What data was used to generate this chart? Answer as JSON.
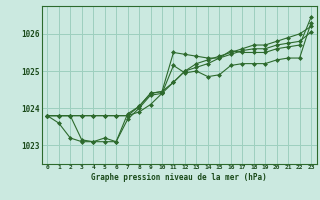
{
  "background_color": "#cbe9e0",
  "grid_color": "#9dcfbe",
  "line_color": "#2d6a2d",
  "xlabel": "Graphe pression niveau de la mer (hPa)",
  "ylim": [
    1022.5,
    1026.75
  ],
  "xlim": [
    -0.5,
    23.5
  ],
  "yticks": [
    1023,
    1024,
    1025,
    1026
  ],
  "xticks": [
    0,
    1,
    2,
    3,
    4,
    5,
    6,
    7,
    8,
    9,
    10,
    11,
    12,
    13,
    14,
    15,
    16,
    17,
    18,
    19,
    20,
    21,
    22,
    23
  ],
  "series": [
    [
      1023.8,
      1023.8,
      1023.8,
      1023.8,
      1023.8,
      1023.8,
      1023.8,
      1023.8,
      1023.9,
      1024.1,
      1024.4,
      1024.7,
      1025.0,
      1025.2,
      1025.3,
      1025.4,
      1025.5,
      1025.6,
      1025.7,
      1025.7,
      1025.8,
      1025.9,
      1026.0,
      1026.2
    ],
    [
      1023.8,
      1023.6,
      1023.2,
      1023.1,
      1023.1,
      1023.2,
      1023.1,
      1023.7,
      1024.0,
      1024.35,
      1024.4,
      1025.15,
      1024.95,
      1025.0,
      1024.85,
      1024.9,
      1025.15,
      1025.2,
      1025.2,
      1025.2,
      1025.3,
      1025.35,
      1025.35,
      1026.3
    ],
    [
      1023.8,
      1023.8,
      1023.8,
      1023.15,
      1023.1,
      1023.1,
      1023.1,
      1023.85,
      1024.05,
      1024.4,
      1024.45,
      1025.5,
      1025.45,
      1025.4,
      1025.35,
      1025.35,
      1025.55,
      1025.5,
      1025.5,
      1025.5,
      1025.6,
      1025.65,
      1025.7,
      1026.45
    ],
    [
      1023.8,
      1023.8,
      1023.8,
      1023.8,
      1023.8,
      1023.8,
      1023.8,
      1023.8,
      1024.05,
      1024.4,
      1024.45,
      1024.7,
      1025.0,
      1025.1,
      1025.2,
      1025.35,
      1025.45,
      1025.55,
      1025.6,
      1025.6,
      1025.7,
      1025.75,
      1025.8,
      1026.05
    ]
  ]
}
